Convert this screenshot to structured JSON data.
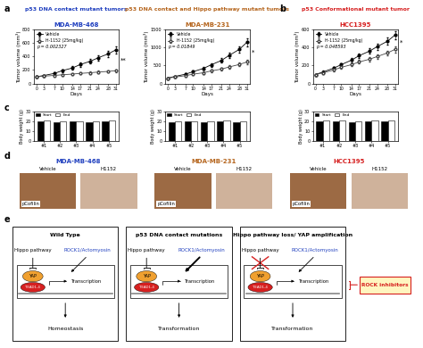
{
  "chart_data": [
    {
      "type": "line",
      "title": "MDA-MB-468",
      "title_color": "#1f3fbf",
      "xlabel": "Days",
      "ylabel": "Tumor volume (mm³)",
      "x": [
        0,
        3,
        7,
        10,
        14,
        17,
        21,
        24,
        28,
        31
      ],
      "xlim": [
        -1,
        32
      ],
      "xticks": [
        0,
        3,
        7,
        10,
        14,
        17,
        21,
        24,
        28,
        31
      ],
      "ylim": [
        0,
        800
      ],
      "yticks": [
        0,
        200,
        400,
        600,
        800
      ],
      "legend": "upper left",
      "p_value_label": "p = 0.002327",
      "significance": "**",
      "series": [
        {
          "name": "Vehicle",
          "color": "#000000",
          "marker": "circle",
          "values": [
            100,
            120,
            150,
            190,
            230,
            280,
            330,
            380,
            440,
            500
          ],
          "errors": [
            10,
            12,
            15,
            20,
            25,
            30,
            35,
            40,
            45,
            50
          ]
        },
        {
          "name": "H-1152 (25mg/kg)",
          "color": "#444444",
          "marker": "open circle",
          "values": [
            100,
            110,
            120,
            130,
            140,
            150,
            160,
            170,
            180,
            190
          ],
          "errors": [
            10,
            10,
            12,
            13,
            14,
            15,
            16,
            17,
            18,
            20
          ]
        }
      ]
    },
    {
      "type": "line",
      "title": "MDA-MB-231",
      "title_color": "#b5651d",
      "xlabel": "Days",
      "ylabel": "Tumor volume (mm³)",
      "x": [
        0,
        3,
        7,
        10,
        14,
        17,
        21,
        24,
        28,
        31
      ],
      "xlim": [
        -1,
        32
      ],
      "xticks": [
        0,
        3,
        7,
        10,
        14,
        17,
        21,
        24,
        28,
        31
      ],
      "ylim": [
        0,
        1500
      ],
      "yticks": [
        0,
        500,
        1000,
        1500
      ],
      "legend": "upper left",
      "p_value_label": "p = 0.01849",
      "significance": "*",
      "series": [
        {
          "name": "Vehicle",
          "color": "#000000",
          "marker": "circle",
          "values": [
            150,
            200,
            260,
            330,
            420,
            520,
            640,
            780,
            950,
            1150
          ],
          "errors": [
            15,
            20,
            25,
            30,
            40,
            50,
            60,
            70,
            90,
            110
          ]
        },
        {
          "name": "H-1152 (25mg/kg)",
          "color": "#444444",
          "marker": "open circle",
          "values": [
            150,
            180,
            220,
            260,
            300,
            350,
            400,
            460,
            530,
            600
          ],
          "errors": [
            15,
            18,
            20,
            25,
            30,
            35,
            40,
            45,
            50,
            60
          ]
        }
      ]
    },
    {
      "type": "line",
      "title": "HCC1395",
      "title_color": "#d62020",
      "xlabel": "Days",
      "ylabel": "Tumor volume (mm³)",
      "x": [
        0,
        3,
        7,
        10,
        14,
        17,
        21,
        24,
        28,
        31
      ],
      "xlim": [
        -1,
        32
      ],
      "xticks": [
        0,
        3,
        7,
        10,
        14,
        17,
        21,
        24,
        28,
        31
      ],
      "ylim": [
        0,
        600
      ],
      "yticks": [
        0,
        200,
        400,
        600
      ],
      "legend": "upper left",
      "p_value_label": "p = 0.048593",
      "significance": "*",
      "series": [
        {
          "name": "Vehicle",
          "color": "#000000",
          "marker": "circle",
          "values": [
            100,
            130,
            170,
            210,
            260,
            310,
            360,
            410,
            470,
            540
          ],
          "errors": [
            10,
            12,
            15,
            18,
            22,
            26,
            30,
            35,
            40,
            45
          ]
        },
        {
          "name": "H-1152 (25mg/kg)",
          "color": "#444444",
          "marker": "open circle",
          "values": [
            100,
            120,
            150,
            180,
            210,
            240,
            270,
            300,
            340,
            380
          ],
          "errors": [
            10,
            11,
            13,
            15,
            18,
            20,
            22,
            25,
            28,
            32
          ]
        }
      ]
    },
    {
      "type": "bar",
      "ylabel": "Body weight (g)",
      "categories": [
        "#1",
        "#2",
        "#3",
        "#4",
        "#5"
      ],
      "ylim": [
        0,
        30
      ],
      "yticks": [
        0,
        10,
        20,
        30
      ],
      "legend": "upper left",
      "series": [
        {
          "name": "Start",
          "color": "#000000",
          "values": [
            20,
            19,
            20,
            19,
            20
          ]
        },
        {
          "name": "End",
          "color": "#ffffff",
          "values": [
            21,
            20,
            20,
            20,
            21
          ]
        }
      ]
    },
    {
      "type": "bar",
      "ylabel": "Body weight (g)",
      "categories": [
        "#1",
        "#2",
        "#3",
        "#4",
        "#5"
      ],
      "ylim": [
        0,
        30
      ],
      "yticks": [
        0,
        10,
        20,
        30
      ],
      "legend": "upper left",
      "series": [
        {
          "name": "Start",
          "color": "#000000",
          "values": [
            19,
            20,
            19,
            20,
            19
          ]
        },
        {
          "name": "End",
          "color": "#ffffff",
          "values": [
            20,
            20,
            20,
            21,
            20
          ]
        }
      ]
    },
    {
      "type": "bar",
      "ylabel": "Body weight (g)",
      "categories": [
        "#1",
        "#2",
        "#3",
        "#4",
        "#5"
      ],
      "ylim": [
        0,
        30
      ],
      "yticks": [
        0,
        10,
        20,
        30
      ],
      "legend": "upper left",
      "series": [
        {
          "name": "Start",
          "color": "#000000",
          "values": [
            20,
            20,
            19,
            20,
            20
          ]
        },
        {
          "name": "End",
          "color": "#ffffff",
          "values": [
            21,
            21,
            20,
            21,
            21
          ]
        }
      ]
    }
  ],
  "headers": [
    {
      "text": "p53 DNA contact mutant tumors",
      "color": "#1f3fbf"
    },
    {
      "text": "p53 DNA contact and Hippo pathway mutant tumors",
      "color": "#b5651d"
    },
    {
      "text": "p53 Conformational mutant tumor",
      "color": "#d62020"
    }
  ],
  "panel_labels": [
    "a",
    "b",
    "c",
    "d",
    "e"
  ],
  "images": {
    "panels": [
      {
        "title": "MDA-MB-468",
        "color": "#1f3fbf"
      },
      {
        "title": "MDA-MB-231",
        "color": "#b5651d"
      },
      {
        "title": "HCC1395",
        "color": "#d62020"
      }
    ],
    "conditions": [
      "Vehicle",
      "H1152"
    ],
    "stain": "pCofilin"
  },
  "diagram": {
    "panels": [
      {
        "title": "Wild Type",
        "outcome": "Homeostasis"
      },
      {
        "title": "p53 DNA contact mutations",
        "outcome": "Transformation"
      },
      {
        "title": "Hippo pathway loss/ YAP amplification",
        "outcome": "Transformation"
      }
    ],
    "hippo": "Hippo pathway",
    "rock": "ROCK1/Actomyosin",
    "yap": "YAP",
    "tead": "TEAD1-4",
    "transcription": "Transcription",
    "inhibitor": "ROCK inhibitors"
  }
}
